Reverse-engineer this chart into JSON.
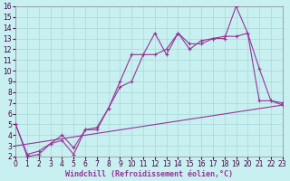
{
  "xlabel": "Windchill (Refroidissement éolien,°C)",
  "background_color": "#c8f0f0",
  "grid_color": "#a8d8d8",
  "line_color": "#993399",
  "xlim": [
    0,
    23
  ],
  "ylim": [
    2,
    16
  ],
  "xticks": [
    0,
    1,
    2,
    3,
    4,
    5,
    6,
    7,
    8,
    9,
    10,
    11,
    12,
    13,
    14,
    15,
    16,
    17,
    18,
    19,
    20,
    21,
    22,
    23
  ],
  "yticks": [
    2,
    3,
    4,
    5,
    6,
    7,
    8,
    9,
    10,
    11,
    12,
    13,
    14,
    15,
    16
  ],
  "line1_x": [
    0,
    1,
    2,
    3,
    4,
    5,
    6,
    7,
    8,
    9,
    10,
    11,
    12,
    13,
    14,
    15,
    16,
    17,
    18,
    19,
    20,
    21,
    22,
    23
  ],
  "line1_y": [
    5.0,
    2.0,
    2.2,
    3.2,
    3.5,
    2.2,
    4.5,
    4.5,
    6.5,
    9.0,
    11.5,
    11.5,
    13.5,
    11.5,
    13.5,
    12.5,
    12.5,
    13.0,
    13.0,
    16.0,
    13.5,
    10.2,
    7.2,
    7.0
  ],
  "line2_x": [
    0,
    1,
    2,
    3,
    4,
    5,
    6,
    7,
    8,
    9,
    10,
    11,
    12,
    13,
    14,
    15,
    16,
    17,
    18,
    19,
    20,
    21,
    22,
    23
  ],
  "line2_y": [
    5.0,
    2.2,
    2.5,
    3.2,
    4.0,
    2.8,
    4.5,
    4.7,
    6.5,
    8.5,
    9.0,
    11.5,
    11.5,
    12.0,
    13.5,
    12.0,
    12.8,
    13.0,
    13.2,
    13.2,
    13.5,
    7.2,
    7.2,
    6.8
  ],
  "line3_x": [
    0,
    23
  ],
  "line3_y": [
    3.0,
    6.8
  ],
  "tick_fontsize": 5.5,
  "label_fontsize": 6,
  "marker": "+"
}
